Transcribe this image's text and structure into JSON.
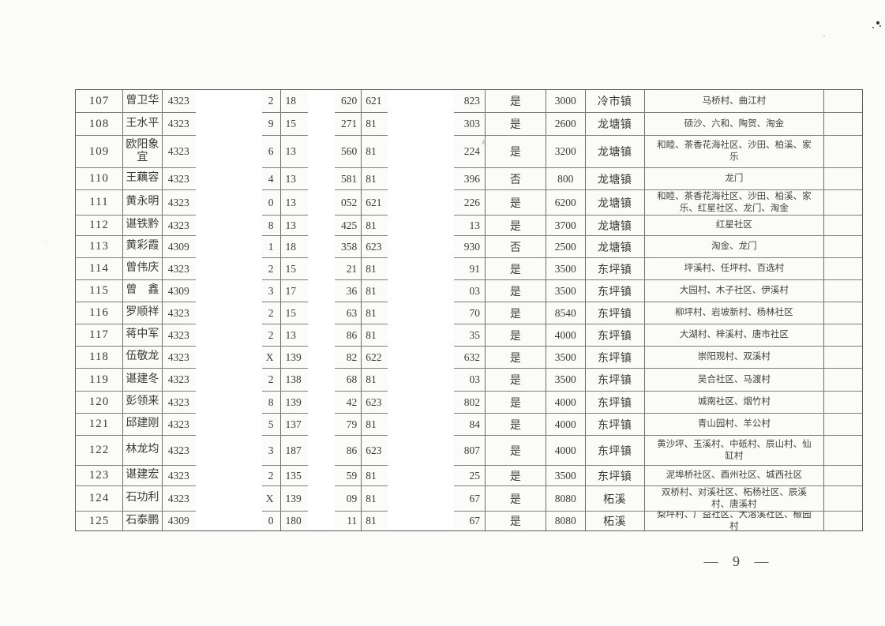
{
  "page": {
    "footer_page_number": "— 9 —"
  },
  "table": {
    "rows": [
      {
        "no": "107",
        "name": "曾卫华",
        "id_left": "4323",
        "id_right": "2",
        "phone_left": "18",
        "phone_right": "620",
        "bank_left": "621",
        "bank_right": "823",
        "approved": "是",
        "amount": "3000",
        "town": "冷市镇",
        "villages": "马桥村、曲江村"
      },
      {
        "no": "108",
        "name": "王水平",
        "id_left": "4323",
        "id_right": "9",
        "phone_left": "15",
        "phone_right": "271",
        "bank_left": "81",
        "bank_right": "303",
        "approved": "是",
        "amount": "2600",
        "town": "龙塘镇",
        "villages": "硕沙、六和、陶贺、淘金"
      },
      {
        "no": "109",
        "name": "欧阳象宜",
        "id_left": "4323",
        "id_right": "6",
        "phone_left": "13",
        "phone_right": "560",
        "bank_left": "81",
        "bank_right": "224",
        "approved": "是",
        "amount": "3200",
        "town": "龙塘镇",
        "villages": "和睦、茶香花海社区、沙田、柏溪、家乐"
      },
      {
        "no": "110",
        "name": "王藕容",
        "id_left": "4323",
        "id_right": "4",
        "phone_left": "13",
        "phone_right": "581",
        "bank_left": "81",
        "bank_right": "396",
        "approved": "否",
        "amount": "800",
        "town": "龙塘镇",
        "villages": "龙门"
      },
      {
        "no": "111",
        "name": "黄永明",
        "id_left": "4323",
        "id_right": "0",
        "phone_left": "13",
        "phone_right": "052",
        "bank_left": "621",
        "bank_right": "226",
        "approved": "是",
        "amount": "6200",
        "town": "龙塘镇",
        "villages": "和睦、茶香花海社区、沙田、柏溪、家乐、红星社区、龙门、淘金"
      },
      {
        "no": "112",
        "name": "谌铁黔",
        "id_left": "4323",
        "id_right": "8",
        "phone_left": "13",
        "phone_right": "425",
        "bank_left": "81",
        "bank_right": "13",
        "approved": "是",
        "amount": "3700",
        "town": "龙塘镇",
        "villages": "红星社区"
      },
      {
        "no": "113",
        "name": "黄彩霞",
        "id_left": "4309",
        "id_right": "1",
        "phone_left": "18",
        "phone_right": "358",
        "bank_left": "623",
        "bank_right": "930",
        "approved": "否",
        "amount": "2500",
        "town": "龙塘镇",
        "villages": "淘金、龙门"
      },
      {
        "no": "114",
        "name": "曾伟庆",
        "id_left": "4323",
        "id_right": "2",
        "phone_left": "15",
        "phone_right": "21",
        "bank_left": "81",
        "bank_right": "91",
        "approved": "是",
        "amount": "3500",
        "town": "东坪镇",
        "villages": "坪溪村、任坪村、百选村"
      },
      {
        "no": "115",
        "name": "曾　鑫",
        "id_left": "4309",
        "id_right": "3",
        "phone_left": "17",
        "phone_right": "36",
        "bank_left": "81",
        "bank_right": "03",
        "approved": "是",
        "amount": "3500",
        "town": "东坪镇",
        "villages": "大园村、木子社区、伊溪村"
      },
      {
        "no": "116",
        "name": "罗顺祥",
        "id_left": "4323",
        "id_right": "2",
        "phone_left": "15",
        "phone_right": "63",
        "bank_left": "81",
        "bank_right": "70",
        "approved": "是",
        "amount": "8540",
        "town": "东坪镇",
        "villages": "柳坪村、岩坡新村、杨林社区"
      },
      {
        "no": "117",
        "name": "蒋中军",
        "id_left": "4323",
        "id_right": "2",
        "phone_left": "13",
        "phone_right": "86",
        "bank_left": "81",
        "bank_right": "35",
        "approved": "是",
        "amount": "4000",
        "town": "东坪镇",
        "villages": "大湖村、梓溪村、唐市社区"
      },
      {
        "no": "118",
        "name": "伍敬龙",
        "id_left": "4323",
        "id_right": "X",
        "phone_left": "139",
        "phone_right": "82",
        "bank_left": "622",
        "bank_right": "632",
        "approved": "是",
        "amount": "3500",
        "town": "东坪镇",
        "villages": "崇阳观村、双溪村"
      },
      {
        "no": "119",
        "name": "谌建冬",
        "id_left": "4323",
        "id_right": "2",
        "phone_left": "138",
        "phone_right": "68",
        "bank_left": "81",
        "bank_right": "03",
        "approved": "是",
        "amount": "3500",
        "town": "东坪镇",
        "villages": "吴合社区、马渡村"
      },
      {
        "no": "120",
        "name": "彭领来",
        "id_left": "4323",
        "id_right": "8",
        "phone_left": "139",
        "phone_right": "42",
        "bank_left": "623",
        "bank_right": "802",
        "approved": "是",
        "amount": "4000",
        "town": "东坪镇",
        "villages": "城南社区、烟竹村"
      },
      {
        "no": "121",
        "name": "邱建刚",
        "id_left": "4323",
        "id_right": "5",
        "phone_left": "137",
        "phone_right": "79",
        "bank_left": "81",
        "bank_right": "84",
        "approved": "是",
        "amount": "4000",
        "town": "东坪镇",
        "villages": "青山园村、羊公村"
      },
      {
        "no": "122",
        "name": "林龙均",
        "id_left": "4323",
        "id_right": "3",
        "phone_left": "187",
        "phone_right": "86",
        "bank_left": "623",
        "bank_right": "807",
        "approved": "是",
        "amount": "4000",
        "town": "东坪镇",
        "villages": "黄沙坪、玉溪村、中砥村、辰山村、仙缸村"
      },
      {
        "no": "123",
        "name": "谌建宏",
        "id_left": "4323",
        "id_right": "2",
        "phone_left": "135",
        "phone_right": "59",
        "bank_left": "81",
        "bank_right": "25",
        "approved": "是",
        "amount": "3500",
        "town": "东坪镇",
        "villages": "泥埠桥社区、酉州社区、城西社区"
      },
      {
        "no": "124",
        "name": "石功利",
        "id_left": "4323",
        "id_right": "X",
        "phone_left": "139",
        "phone_right": "09",
        "bank_left": "81",
        "bank_right": "67",
        "approved": "是",
        "amount": "8080",
        "town": "柘溪",
        "villages": "双桥村、对溪社区、柘杨社区、辰溪村、唐溪村"
      },
      {
        "no": "125",
        "name": "石泰鹏",
        "id_left": "4309",
        "id_right": "0",
        "phone_left": "180",
        "phone_right": "11",
        "bank_left": "81",
        "bank_right": "67",
        "approved": "是",
        "amount": "8080",
        "town": "柘溪",
        "villages": "梨坪村、广益社区、大溶溪社区、椒园村"
      }
    ]
  }
}
